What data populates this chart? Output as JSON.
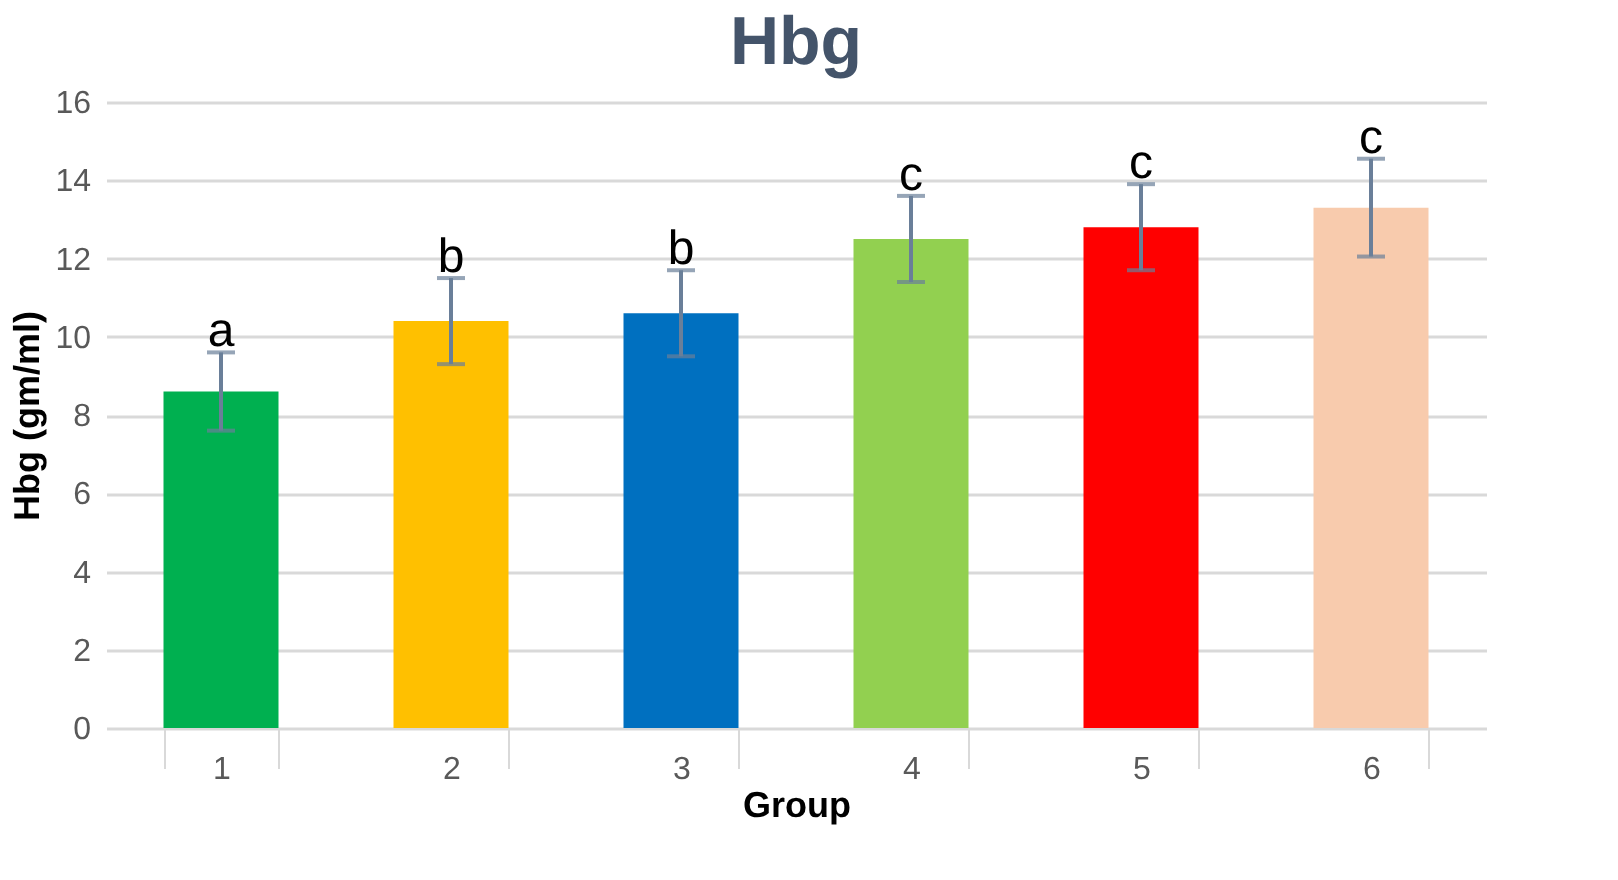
{
  "chart_data": {
    "type": "bar",
    "title": "Hbg",
    "xlabel": "Group",
    "ylabel": "Hbg (gm/ml)",
    "categories": [
      "1",
      "2",
      "3",
      "4",
      "5",
      "6"
    ],
    "values": [
      8.6,
      10.4,
      10.6,
      12.5,
      12.8,
      13.3
    ],
    "colors": [
      "#00b050",
      "#ffc000",
      "#0070c0",
      "#92d050",
      "#ff0000",
      "#f8cbad"
    ],
    "errors": [
      1.0,
      1.1,
      1.1,
      1.1,
      1.1,
      1.25
    ],
    "ylim": [
      0,
      16
    ],
    "yticks": [
      0,
      2,
      4,
      6,
      8,
      10,
      12,
      14,
      16
    ],
    "grid": "y",
    "annotations": [
      {
        "text": "a",
        "x": "1",
        "y": 9.6
      },
      {
        "text": "b",
        "x": "2",
        "y": 11.5
      },
      {
        "text": "b",
        "x": "3",
        "y": 11.7
      },
      {
        "text": "c",
        "x": "4",
        "y": 13.6
      },
      {
        "text": "c",
        "x": "5",
        "y": 13.9
      },
      {
        "text": "c",
        "x": "6",
        "y": 14.55
      }
    ]
  }
}
